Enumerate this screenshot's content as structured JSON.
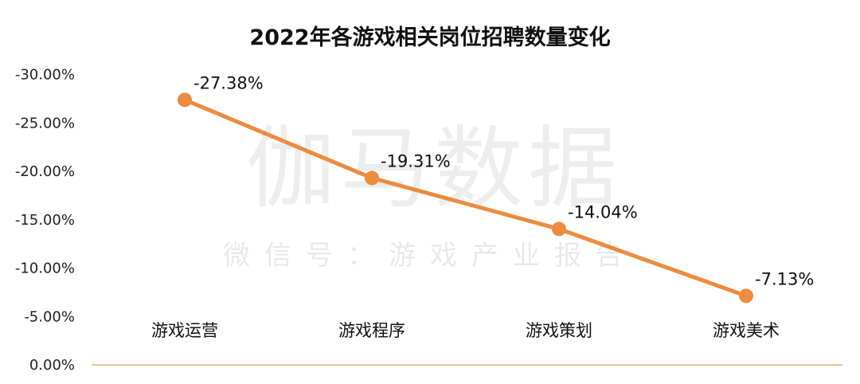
{
  "watermark": {
    "brand": "伽马数据",
    "subtitle": "微信号：游戏产业报告"
  },
  "chart_data": {
    "type": "line",
    "title": "2022年各游戏相关岗位招聘数量变化",
    "categories": [
      "游戏运营",
      "游戏程序",
      "游戏策划",
      "游戏美术"
    ],
    "series": [
      {
        "values": [
          -27.38,
          -19.31,
          -14.04,
          -7.13
        ]
      }
    ],
    "data_labels": [
      "-27.38%",
      "-19.31%",
      "-14.04%",
      "-7.13%"
    ],
    "ytick_labels": [
      "-30.00%",
      "-25.00%",
      "-20.00%",
      "-15.00%",
      "-10.00%",
      "-5.00%",
      "0.00%"
    ],
    "ylim": [
      0,
      -30
    ],
    "y_reversed": true,
    "grid": false,
    "legend": "none",
    "colors": {
      "line": "#ED8B3F",
      "axis": "#F0A868"
    }
  }
}
